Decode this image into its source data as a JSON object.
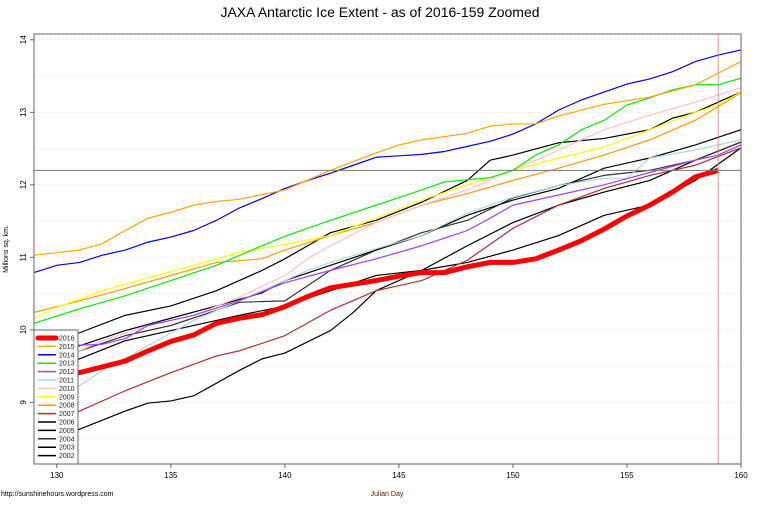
{
  "chart_data": {
    "type": "line",
    "title": "JAXA Antarctic Ice Extent - as of 2016-159 Zoomed",
    "xlabel": "Julian Day",
    "ylabel": "Millions sq. km.",
    "xlim": [
      129,
      160
    ],
    "ylim": [
      8.15,
      14.08
    ],
    "xticks": [
      130,
      135,
      140,
      145,
      150,
      155,
      160
    ],
    "yticks": [
      9,
      10,
      11,
      12,
      13,
      14
    ],
    "grid": true,
    "legend_position": "bottom-left",
    "reference_lines": {
      "horizontal": 12.2,
      "vertical": 159
    },
    "credit": "http://sunshinehours.wordpress.com",
    "series": [
      {
        "name": "2016",
        "color": "#ff0000",
        "x": [
          129,
          130,
          131,
          132,
          133,
          134,
          135,
          136,
          137,
          138,
          139,
          140,
          141,
          142,
          143,
          144,
          145,
          146,
          147,
          148,
          149,
          150,
          151,
          152,
          153,
          154,
          155,
          156,
          157,
          158,
          159
        ],
        "y": [
          9.27,
          9.37,
          9.41,
          9.49,
          9.57,
          9.71,
          9.84,
          9.93,
          10.09,
          10.16,
          10.21,
          10.32,
          10.46,
          10.58,
          10.63,
          10.68,
          10.74,
          10.79,
          10.79,
          10.87,
          10.93,
          10.93,
          10.98,
          11.1,
          11.23,
          11.39,
          11.57,
          11.72,
          11.9,
          12.11,
          12.2
        ]
      },
      {
        "name": "2015",
        "color": "#ffa500",
        "x": [
          129,
          131,
          132,
          133,
          134,
          135,
          136,
          137,
          138,
          140,
          142,
          144,
          145,
          146,
          148,
          149,
          150,
          151,
          152,
          154,
          156,
          158,
          160
        ],
        "y": [
          11.03,
          11.1,
          11.19,
          11.37,
          11.54,
          11.62,
          11.72,
          11.77,
          11.8,
          11.93,
          12.2,
          12.44,
          12.55,
          12.62,
          12.71,
          12.81,
          12.84,
          12.84,
          12.95,
          13.11,
          13.21,
          13.38,
          13.7
        ]
      },
      {
        "name": "2014",
        "color": "#0000ff",
        "x": [
          129,
          130,
          131,
          132,
          133,
          134,
          135,
          136,
          137,
          138,
          139,
          140,
          141,
          142,
          143,
          144,
          145,
          146,
          147,
          148,
          149,
          150,
          151,
          152,
          153,
          154,
          155,
          156,
          157,
          158,
          159,
          160
        ],
        "y": [
          10.79,
          10.89,
          10.93,
          11.03,
          11.1,
          11.21,
          11.28,
          11.37,
          11.51,
          11.68,
          11.81,
          11.95,
          12.06,
          12.16,
          12.27,
          12.38,
          12.4,
          12.42,
          12.46,
          12.53,
          12.6,
          12.7,
          12.84,
          13.03,
          13.17,
          13.28,
          13.39,
          13.46,
          13.56,
          13.7,
          13.79,
          13.86
        ]
      },
      {
        "name": "2013",
        "color": "#00ee00",
        "x": [
          129,
          131,
          133,
          135,
          137,
          139,
          140,
          142,
          144,
          146,
          147,
          148,
          149,
          150,
          151,
          152,
          153,
          154,
          155,
          156,
          157,
          158,
          159,
          160
        ],
        "y": [
          10.09,
          10.29,
          10.47,
          10.68,
          10.89,
          11.16,
          11.29,
          11.51,
          11.72,
          11.93,
          12.04,
          12.07,
          12.1,
          12.2,
          12.41,
          12.55,
          12.76,
          12.89,
          13.1,
          13.2,
          13.31,
          13.38,
          13.38,
          13.47
        ]
      },
      {
        "name": "2012",
        "color": "#a040ff",
        "x": [
          129,
          130,
          132,
          133,
          134,
          136,
          138,
          140,
          142,
          144,
          146,
          148,
          149,
          150,
          152,
          154,
          156,
          158,
          159,
          160
        ],
        "y": [
          9.68,
          9.78,
          9.8,
          9.88,
          10.06,
          10.2,
          10.4,
          10.65,
          10.82,
          10.98,
          11.16,
          11.37,
          11.54,
          11.72,
          11.86,
          12.0,
          12.17,
          12.34,
          12.41,
          12.55
        ]
      },
      {
        "name": "2011",
        "color": "#add8e6",
        "x": [
          129,
          131,
          132,
          134,
          136,
          138,
          140,
          141,
          142,
          144,
          146,
          148,
          150,
          152,
          154,
          155,
          156,
          158,
          160
        ],
        "y": [
          8.88,
          9.23,
          9.44,
          9.78,
          10.13,
          10.4,
          10.68,
          10.82,
          10.93,
          11.12,
          11.3,
          11.61,
          11.83,
          11.99,
          12.09,
          12.09,
          12.37,
          12.48,
          12.62
        ]
      },
      {
        "name": "2010",
        "color": "#ffc0cb",
        "x": [
          129,
          131,
          132,
          134,
          136,
          138,
          140,
          141,
          142,
          144,
          146,
          148,
          150,
          152,
          154,
          156,
          158,
          160
        ],
        "y": [
          9.5,
          9.71,
          9.85,
          10.06,
          10.2,
          10.45,
          10.75,
          10.98,
          11.16,
          11.48,
          11.72,
          11.93,
          12.2,
          12.48,
          12.76,
          12.96,
          13.14,
          13.34
        ]
      },
      {
        "name": "2009",
        "color": "#ffff00",
        "x": [
          129,
          130,
          132,
          134,
          136,
          138,
          140,
          142,
          144,
          146,
          148,
          150,
          152,
          154,
          156,
          158,
          159,
          160
        ],
        "y": [
          10.16,
          10.31,
          10.54,
          10.72,
          10.89,
          11.07,
          11.18,
          11.3,
          11.54,
          11.79,
          12.0,
          12.2,
          12.37,
          12.52,
          12.76,
          13.0,
          13.1,
          13.28
        ]
      },
      {
        "name": "2008",
        "color": "#ff9900",
        "x": [
          129,
          131,
          133,
          135,
          137,
          139,
          140,
          142,
          144,
          146,
          148,
          150,
          152,
          154,
          156,
          158,
          160
        ],
        "y": [
          10.24,
          10.4,
          10.57,
          10.75,
          10.93,
          10.98,
          11.1,
          11.3,
          11.48,
          11.72,
          11.88,
          12.06,
          12.23,
          12.41,
          12.62,
          12.89,
          13.27
        ]
      },
      {
        "name": "2007",
        "color": "#b03030",
        "x": [
          129,
          131,
          133,
          135,
          137,
          138,
          140,
          142,
          144,
          146,
          148,
          150,
          152,
          154,
          156,
          158,
          160
        ],
        "y": [
          8.7,
          8.88,
          9.16,
          9.41,
          9.64,
          9.71,
          9.92,
          10.27,
          10.54,
          10.68,
          10.96,
          11.4,
          11.72,
          11.95,
          12.13,
          12.27,
          12.51
        ]
      },
      {
        "name": "2006",
        "color": "#000000",
        "x": [
          129,
          131,
          133,
          135,
          137,
          139,
          140,
          141,
          142,
          144,
          146,
          148,
          149,
          150,
          152,
          154,
          156,
          157,
          158,
          160
        ],
        "y": [
          9.71,
          9.96,
          10.2,
          10.33,
          10.54,
          10.82,
          10.98,
          11.16,
          11.34,
          11.51,
          11.76,
          12.06,
          12.34,
          12.41,
          12.58,
          12.64,
          12.76,
          12.92,
          13.0,
          13.28
        ]
      },
      {
        "name": "2005",
        "color": "#000000",
        "x": [
          129,
          131,
          133,
          135,
          137,
          139,
          140,
          142,
          144,
          146,
          148,
          150,
          152,
          154,
          156,
          158,
          160
        ],
        "y": [
          9.6,
          9.78,
          9.99,
          10.16,
          10.33,
          10.51,
          10.68,
          10.89,
          11.1,
          11.3,
          11.58,
          11.79,
          11.95,
          12.23,
          12.37,
          12.55,
          12.76
        ]
      },
      {
        "name": "2004",
        "color": "#333333",
        "x": [
          129,
          131,
          133,
          135,
          137,
          138,
          140,
          141,
          142,
          144,
          146,
          148,
          150,
          152,
          154,
          156,
          158,
          160
        ],
        "y": [
          9.46,
          9.71,
          9.92,
          10.06,
          10.27,
          10.38,
          10.4,
          10.61,
          10.82,
          11.1,
          11.34,
          11.51,
          11.82,
          11.99,
          12.13,
          12.2,
          12.34,
          12.59
        ]
      },
      {
        "name": "2003",
        "color": "#000000",
        "x": [
          129,
          131,
          133,
          135,
          137,
          138,
          140,
          142,
          144,
          146,
          148,
          150,
          152,
          154,
          156,
          158,
          160
        ],
        "y": [
          9.37,
          9.6,
          9.85,
          9.99,
          10.13,
          10.2,
          10.33,
          10.54,
          10.75,
          10.82,
          10.93,
          11.1,
          11.3,
          11.58,
          11.72,
          12.06,
          12.51
        ]
      },
      {
        "name": "2002",
        "color": "#000000",
        "x": [
          129,
          131,
          133,
          134,
          135,
          136,
          138,
          139,
          140,
          142,
          143,
          144,
          146,
          148,
          150,
          152,
          154,
          156,
          158,
          160
        ],
        "y": [
          8.37,
          8.63,
          8.88,
          8.99,
          9.02,
          9.09,
          9.44,
          9.6,
          9.68,
          9.99,
          10.24,
          10.54,
          10.82,
          11.16,
          11.48,
          11.72,
          11.9,
          12.06,
          12.34,
          12.59
        ]
      }
    ]
  }
}
